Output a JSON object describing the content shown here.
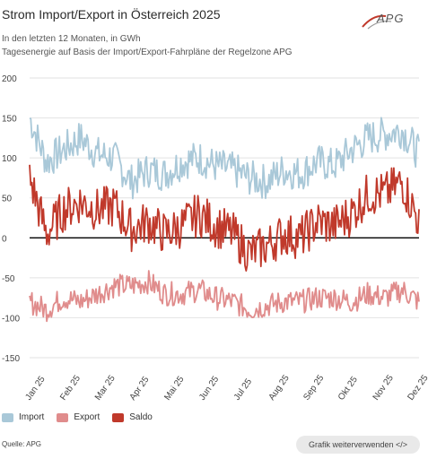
{
  "title": "Strom Import/Export in Österreich 2025",
  "subtitle_1": "In den letzten 12 Monaten, in GWh",
  "subtitle_2": "Tagesenergie auf Basis der Import/Export-Fahrpläne der Regelzone APG",
  "logo_text": "APG",
  "source": "Quelle: APG",
  "reuse_button": "Grafik weiterverwenden </>",
  "colors": {
    "import": "#a9c8d8",
    "export": "#e08c8c",
    "saldo": "#c0392b",
    "grid": "#e2e2e2",
    "zero": "#000000"
  },
  "chart_data": {
    "type": "line",
    "title": "Strom Import/Export in Österreich 2025",
    "xlabel": "",
    "ylabel": "",
    "ylim": [
      -150,
      200
    ],
    "yticks": [
      200,
      150,
      100,
      50,
      0,
      -50,
      -100,
      -150
    ],
    "xticks": [
      "Jan 25",
      "Feb 25",
      "Mar 25",
      "Apr 25",
      "Mai 25",
      "Jun 25",
      "Jul 25",
      "Aug 25",
      "Sep 25",
      "Okt 25",
      "Nov 25",
      "Dez 25"
    ],
    "grid": true,
    "legend": "bottom-left",
    "x": [
      "Jan 25",
      "Jan 25",
      "Feb 25",
      "Feb 25",
      "Mar 25",
      "Mar 25",
      "Apr 25",
      "Apr 25",
      "Mai 25",
      "Mai 25",
      "Jun 25",
      "Jun 25",
      "Jul 25",
      "Jul 25",
      "Aug 25",
      "Aug 25",
      "Sep 25",
      "Sep 25",
      "Okt 25",
      "Okt 25",
      "Nov 25",
      "Nov 25",
      "Dez 25",
      "Dez 25"
    ],
    "series": [
      {
        "name": "Import",
        "values": [
          150,
          95,
          110,
          125,
          105,
          100,
          70,
          85,
          80,
          95,
          100,
          90,
          85,
          75,
          70,
          85,
          80,
          95,
          90,
          110,
          125,
          130,
          135,
          105
        ]
      },
      {
        "name": "Export",
        "values": [
          -80,
          -90,
          -75,
          -80,
          -70,
          -60,
          -60,
          -55,
          -70,
          -70,
          -65,
          -75,
          -80,
          -90,
          -85,
          -80,
          -80,
          -75,
          -75,
          -80,
          -70,
          -75,
          -65,
          -80
        ]
      },
      {
        "name": "Saldo",
        "values": [
          75,
          5,
          35,
          45,
          35,
          40,
          10,
          20,
          5,
          15,
          30,
          15,
          5,
          -20,
          -10,
          5,
          0,
          20,
          15,
          30,
          55,
          55,
          70,
          20
        ]
      }
    ]
  }
}
